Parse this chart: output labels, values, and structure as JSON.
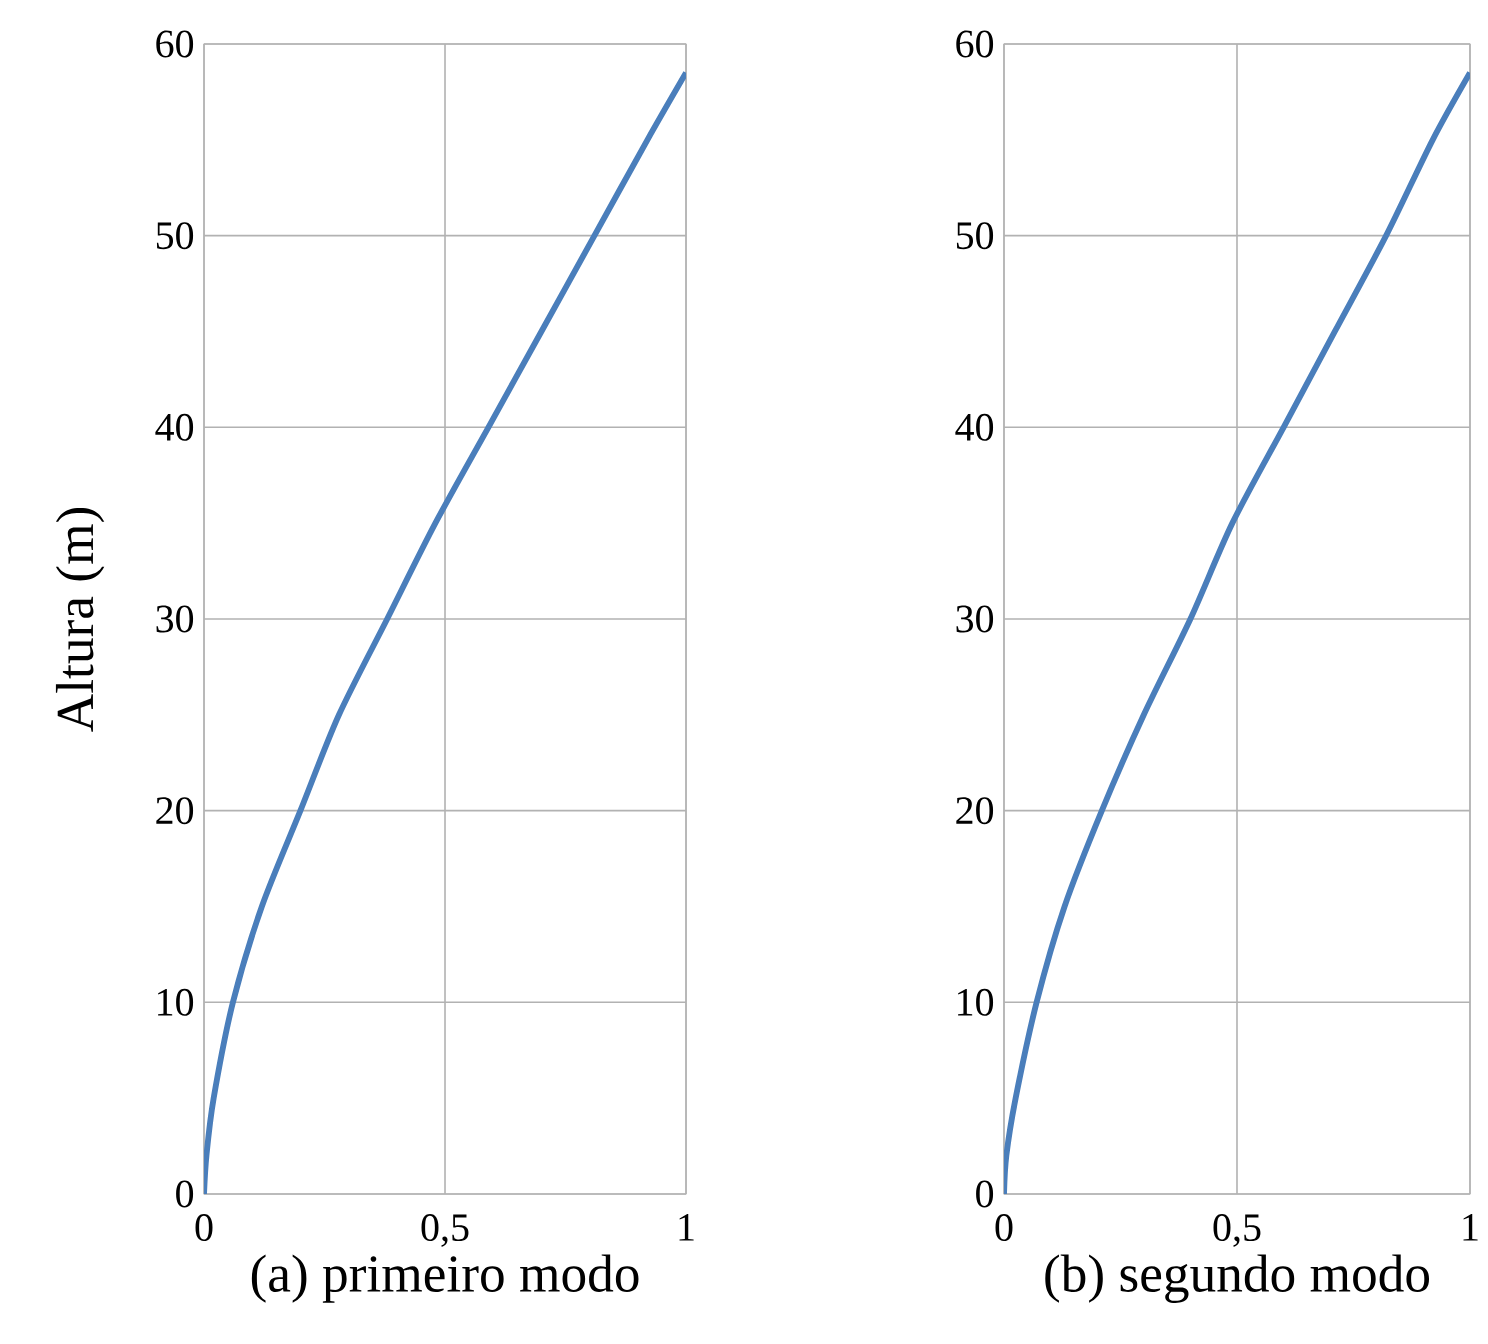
{
  "chart_data": [
    {
      "type": "line",
      "xlabel": "(a) primeiro modo",
      "ylabel": "Altura (m)",
      "series": [
        {
          "color": "#4a7ebb",
          "x": [
            0,
            0.005,
            0.02,
            0.06,
            0.12,
            0.2,
            0.28,
            0.38,
            0.48,
            0.59,
            0.7,
            0.81,
            0.92,
            1
          ],
          "values": [
            0,
            2,
            5,
            10,
            15,
            20,
            25,
            30,
            35,
            40,
            45,
            50,
            55,
            58.5
          ]
        }
      ],
      "xlim": [
        0,
        1
      ],
      "ylim": [
        0,
        60
      ],
      "xticks": [
        0,
        {
          "value": 0.5,
          "label": "0,5"
        },
        1
      ],
      "yticks": [
        0,
        10,
        20,
        30,
        40,
        50,
        60
      ],
      "grid": true,
      "marker": "none",
      "line_style": "solid"
    },
    {
      "type": "line",
      "xlabel": "(b) segundo modo",
      "series": [
        {
          "color": "#4a7ebb",
          "x": [
            0,
            0.005,
            0.025,
            0.07,
            0.13,
            0.21,
            0.3,
            0.4,
            0.49,
            0.6,
            0.71,
            0.82,
            0.92,
            1
          ],
          "values": [
            0,
            2,
            5,
            10,
            15,
            20,
            25,
            30,
            35,
            40,
            45,
            50,
            55,
            58.5
          ]
        }
      ],
      "xlim": [
        0,
        1
      ],
      "ylim": [
        0,
        60
      ],
      "xticks": [
        0,
        {
          "value": 0.5,
          "label": "0,5"
        },
        1
      ],
      "yticks": [
        0,
        10,
        20,
        30,
        40,
        50,
        60
      ],
      "grid": true,
      "marker": "none",
      "line_style": "solid"
    }
  ]
}
